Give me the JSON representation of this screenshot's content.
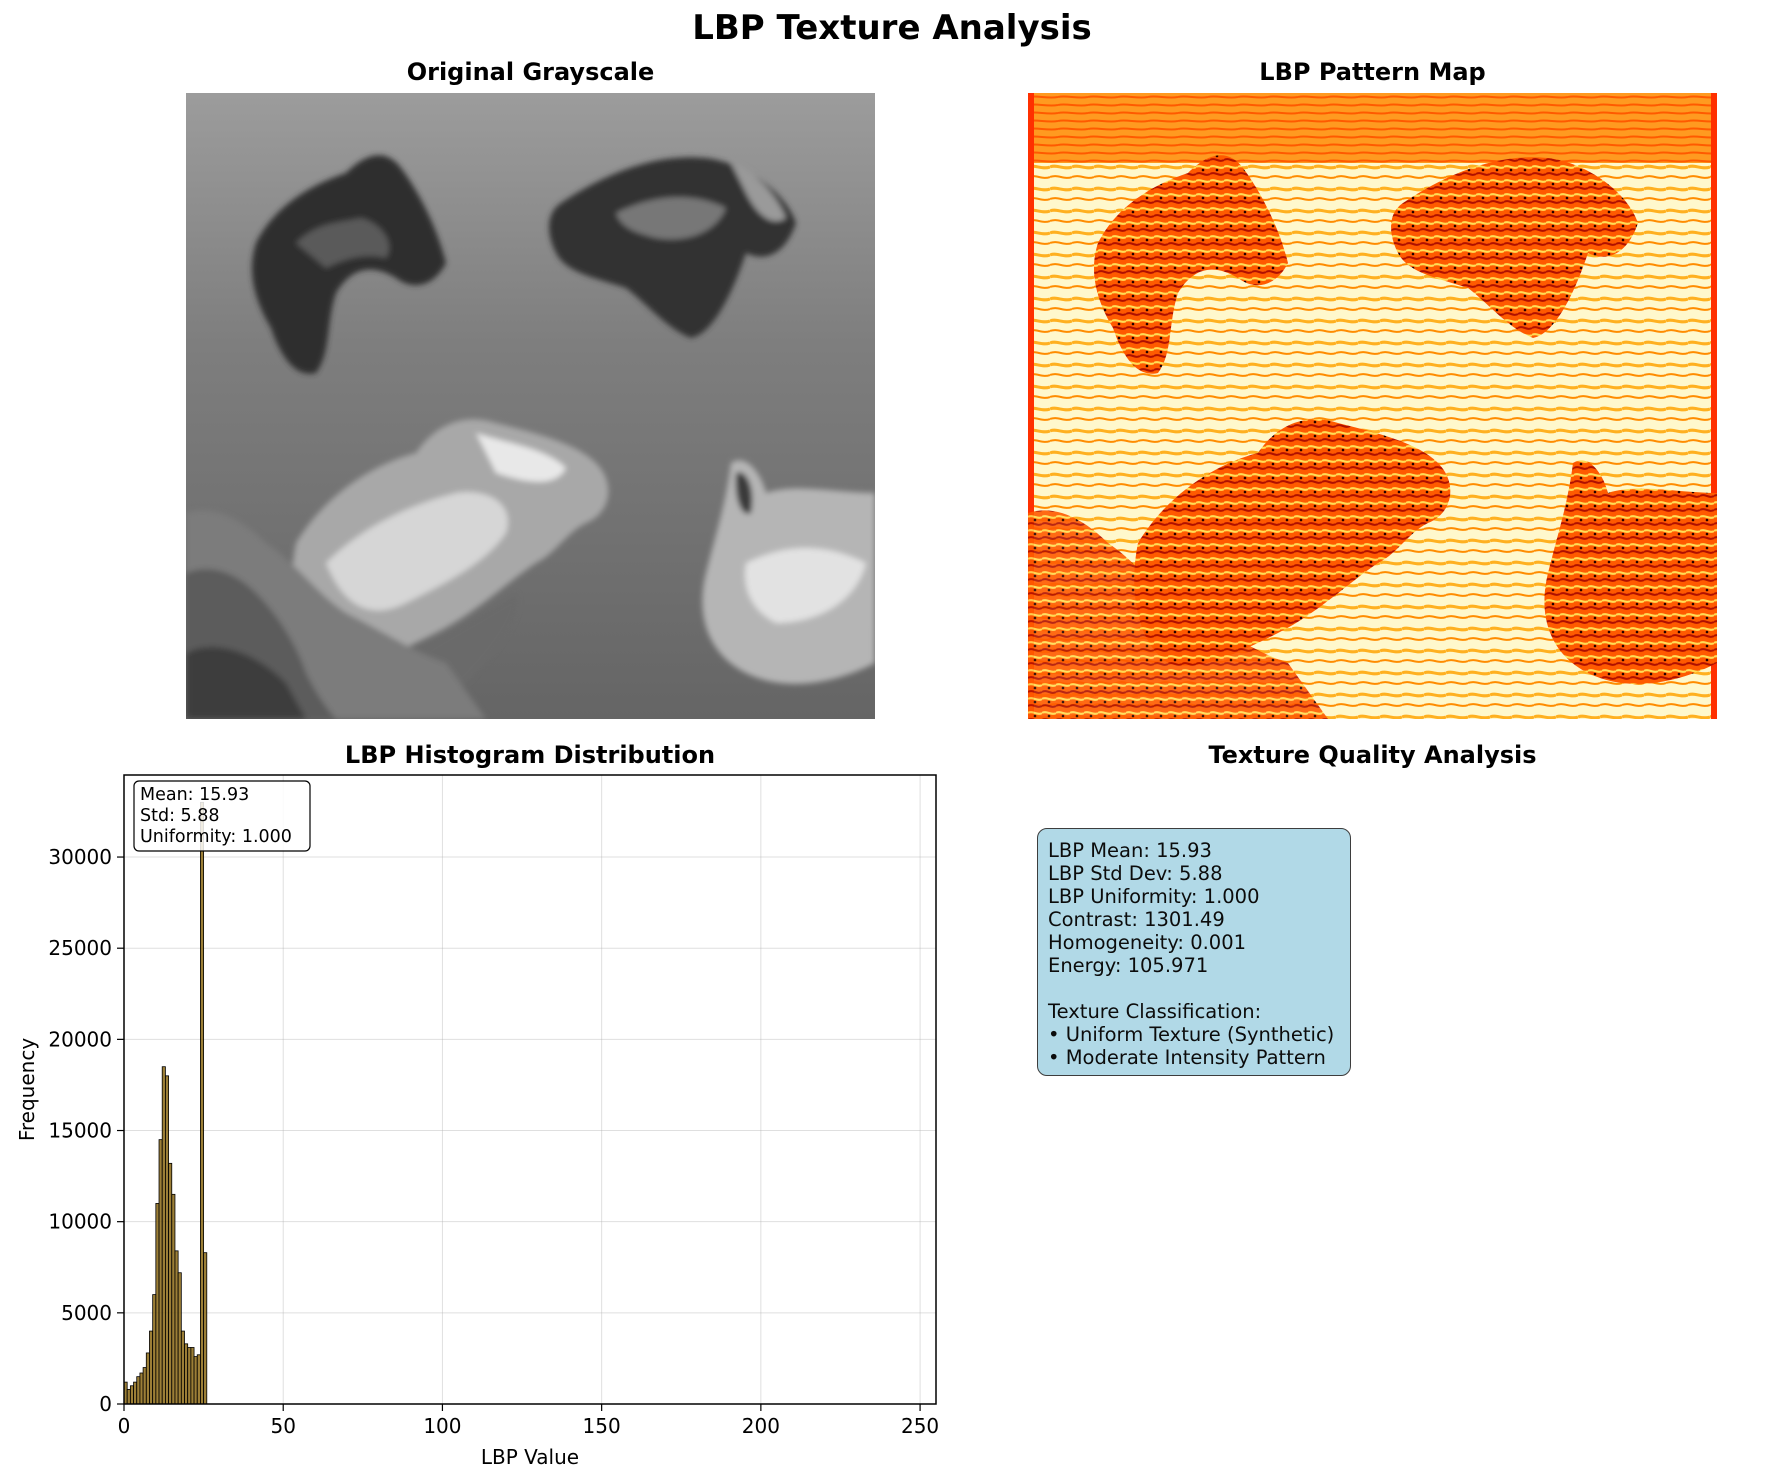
{
  "suptitle": "LBP Texture Analysis",
  "panels": {
    "original": {
      "title": "Original Grayscale"
    },
    "lbp_map": {
      "title": "LBP Pattern Map"
    },
    "histogram": {
      "title": "LBP Histogram Distribution"
    },
    "quality": {
      "title": "Texture Quality Analysis"
    }
  },
  "chart_data": {
    "type": "bar",
    "title": "LBP Histogram Distribution",
    "xlabel": "LBP Value",
    "ylabel": "Frequency",
    "xlim": [
      0,
      255
    ],
    "ylim": [
      0,
      34500
    ],
    "xticks": [
      0,
      50,
      100,
      150,
      200,
      250
    ],
    "yticks": [
      0,
      5000,
      10000,
      15000,
      20000,
      25000,
      30000
    ],
    "grid": true,
    "bar_color": "#8b6914",
    "edge_color": "#000000",
    "x": [
      0,
      1,
      2,
      3,
      4,
      5,
      6,
      7,
      8,
      9,
      10,
      11,
      12,
      13,
      14,
      15,
      16,
      17,
      18,
      19,
      20,
      21,
      22,
      23,
      24,
      25
    ],
    "values": [
      1200,
      800,
      1000,
      1200,
      1500,
      1700,
      2000,
      2800,
      4000,
      6000,
      11000,
      14500,
      18500,
      18000,
      13200,
      11500,
      8400,
      7200,
      4000,
      3300,
      3100,
      3100,
      2600,
      2700,
      33000,
      8300
    ],
    "annotation": [
      "Mean: 15.93",
      "Std: 5.88",
      "Uniformity: 1.000"
    ],
    "annotation_position": "top-left"
  },
  "quality": {
    "lines": [
      "LBP Mean: 15.93",
      "LBP Std Dev: 5.88",
      "LBP Uniformity: 1.000",
      "Contrast: 1301.49",
      "Homogeneity: 0.001",
      "Energy: 105.971",
      "",
      "Texture Classification:",
      "• Uniform Texture (Synthetic)",
      "• Moderate Intensity Pattern"
    ],
    "box_color": "#add8e6"
  }
}
